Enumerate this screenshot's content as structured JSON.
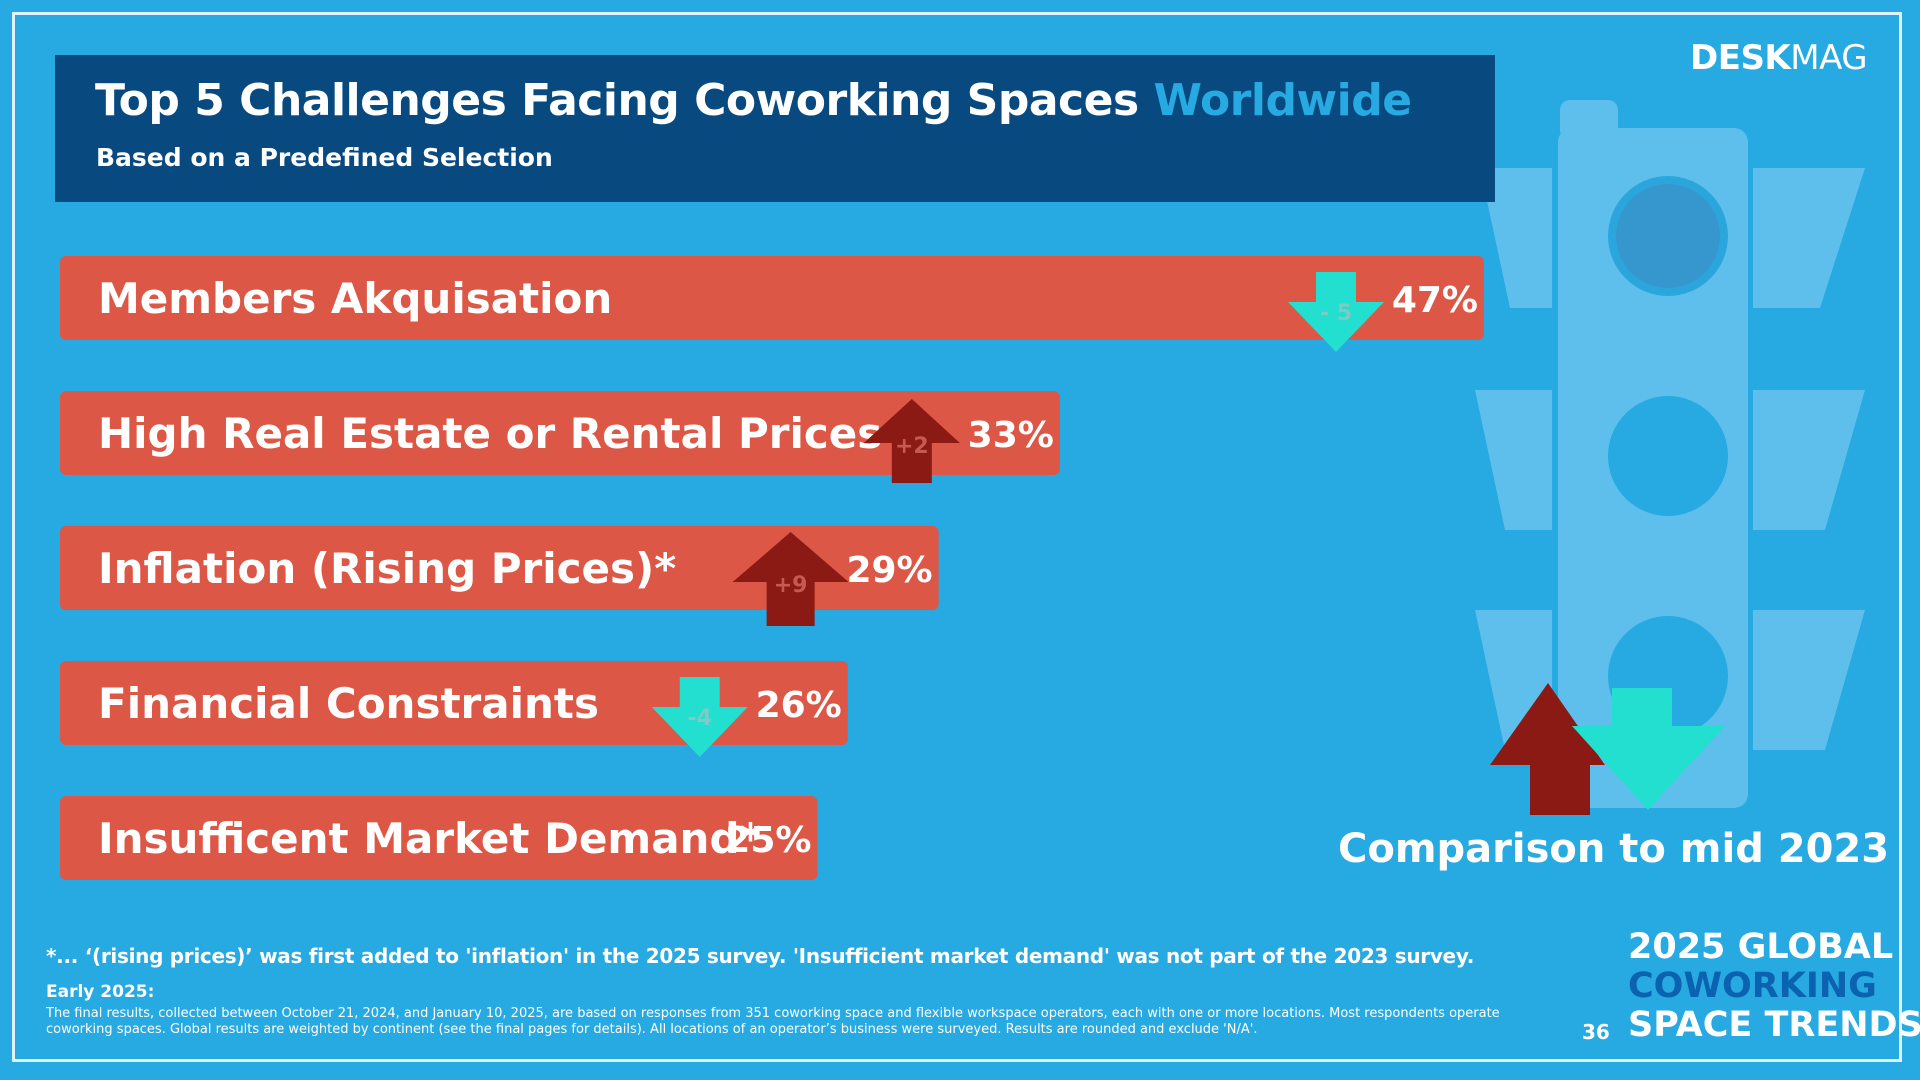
{
  "header": {
    "title_main": "Top 5 Challenges Facing Coworking Spaces",
    "title_highlight": "Worldwide",
    "subtitle": "Based on a Predefined Selection"
  },
  "logo": {
    "bold": "DESK",
    "light": "MAG"
  },
  "colors": {
    "background": "#27a9e1",
    "header_bg": "#084a80",
    "bar": "#dc5746",
    "arrow_up": "#8b1a14",
    "arrow_down": "#22dfcf"
  },
  "chart_data": {
    "type": "bar",
    "orientation": "horizontal",
    "categories": [
      "Members Akquisation",
      "High Real Estate or Rental Prices",
      "Inflation (Rising Prices)*",
      "Financial Constraints",
      "Insufficent Market Demand*"
    ],
    "values": [
      47,
      33,
      29,
      26,
      25
    ],
    "value_labels": [
      "47%",
      "33%",
      "29%",
      "26%",
      "25%"
    ],
    "changes": [
      {
        "direction": "down",
        "label": "- 5"
      },
      {
        "direction": "up",
        "label": "+2"
      },
      {
        "direction": "up",
        "label": "+9"
      },
      {
        "direction": "down",
        "label": "-4"
      },
      null
    ],
    "unit": "%",
    "xlim": [
      0,
      47
    ]
  },
  "legend": {
    "comparison": "Comparison to mid 2023"
  },
  "footnote": "*... ‘(rising prices)’ was first added to 'inflation' in the 2025 survey. 'Insufficient market demand' was not part of the 2023 survey.",
  "early": {
    "label": "Early 2025:",
    "text": "The final results, collected between October 21, 2024, and January 10, 2025, are based on responses from 351 coworking space and flexible workspace operators, each with one or more locations. Most respondents operate coworking spaces. Global results are weighted by continent (see the final pages for details). All locations of an operator’s business were surveyed. Results are rounded and exclude 'N/A'."
  },
  "page_number": "36",
  "brand": {
    "line1": "2025 GLOBAL",
    "line2": "COWORKING",
    "line3": "SPACE TRENDS"
  }
}
